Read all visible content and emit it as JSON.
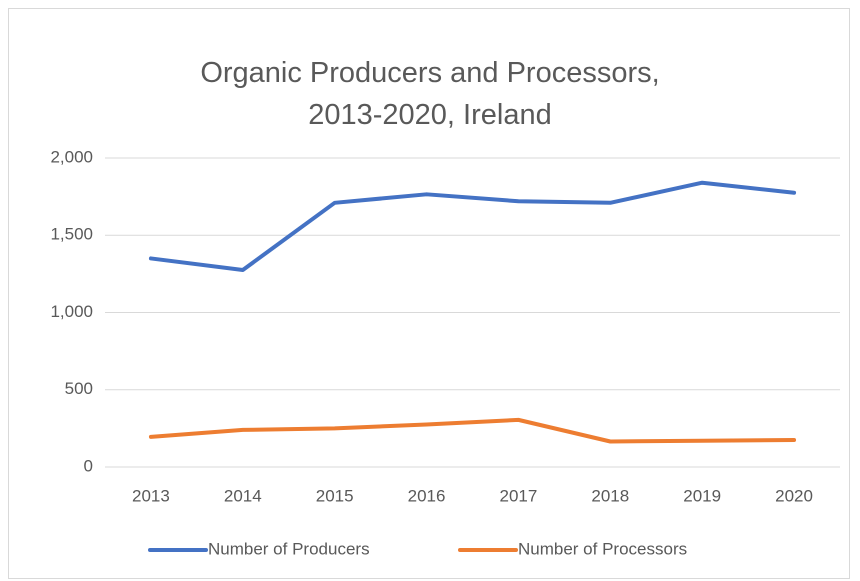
{
  "chart_data": {
    "type": "line",
    "title": "Organic Producers and Processors, 2013-2020, Ireland",
    "categories": [
      "2013",
      "2014",
      "2015",
      "2016",
      "2017",
      "2018",
      "2019",
      "2020"
    ],
    "series": [
      {
        "name": "Number of Producers",
        "color": "#4472c4",
        "values": [
          1350,
          1275,
          1710,
          1765,
          1720,
          1710,
          1840,
          1775
        ]
      },
      {
        "name": "Number of Processors",
        "color": "#ed7d31",
        "values": [
          195,
          240,
          250,
          275,
          305,
          165,
          170,
          175
        ]
      }
    ],
    "ylim": [
      0,
      2000
    ],
    "yticks": [
      0,
      500,
      {
        "value": 1000,
        "label": "1,000"
      },
      {
        "value": 1500,
        "label": "1,500"
      },
      {
        "value": 2000,
        "label": "2,000"
      }
    ],
    "grid": true,
    "legend": "bottom"
  }
}
